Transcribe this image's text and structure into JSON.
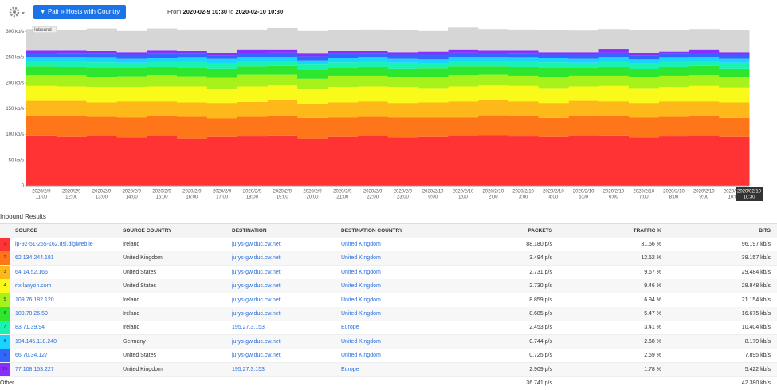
{
  "header": {
    "button": "▼ Pair » Hosts with Country",
    "range_from_label": "From",
    "range_from": "2020-02-9 10:30",
    "range_to_label": "to",
    "range_to": "2020-02-10 10:30"
  },
  "chart_data": {
    "type": "bar",
    "stacked": true,
    "step": true,
    "badge": "Inbound",
    "categories": [
      "11:00",
      "12:00",
      "13:00",
      "14:00",
      "15:00",
      "16:00",
      "17:00",
      "18:00",
      "19:00",
      "20:00",
      "21:00",
      "22:00",
      "23:00",
      "0:00",
      "1:00",
      "2:00",
      "3:00",
      "4:00",
      "5:00",
      "6:00",
      "7:00",
      "8:00",
      "9:00",
      "10:00"
    ],
    "category_dates": [
      "2020/2/9",
      "2020/2/9",
      "2020/2/9",
      "2020/2/9",
      "2020/2/9",
      "2020/2/9",
      "2020/2/9",
      "2020/2/9",
      "2020/2/9",
      "2020/2/9",
      "2020/2/9",
      "2020/2/9",
      "2020/2/9",
      "2020/2/10",
      "2020/2/10",
      "2020/2/10",
      "2020/2/10",
      "2020/2/10",
      "2020/2/10",
      "2020/2/10",
      "2020/2/10",
      "2020/2/10",
      "2020/2/10",
      "2020/2/10"
    ],
    "cursor_date": "2020/02/10",
    "cursor_time": "10:30",
    "ylim": [
      0,
      310
    ],
    "yticks": [
      0,
      {
        "value": 50,
        "label": "50 kb/s"
      },
      {
        "value": 100,
        "label": "100 kb/s"
      },
      {
        "value": 150,
        "label": "150 kb/s"
      },
      {
        "value": 200,
        "label": "200 kb/s"
      },
      {
        "value": 250,
        "label": "250 kb/s"
      },
      {
        "value": 300,
        "label": "300 kb/s"
      }
    ],
    "series": [
      {
        "color": "#ff3333",
        "values": [
          98,
          95,
          97,
          94,
          97,
          92,
          95,
          96,
          98,
          92,
          95,
          97,
          94,
          95,
          97,
          99,
          96,
          95,
          97,
          98,
          94,
          96,
          97,
          95
        ]
      },
      {
        "color": "#ff751a",
        "values": [
          38,
          40,
          37,
          39,
          38,
          42,
          36,
          38,
          37,
          40,
          38,
          37,
          39,
          38,
          36,
          38,
          40,
          37,
          38,
          37,
          39,
          38,
          38,
          37
        ]
      },
      {
        "color": "#ffb81a",
        "values": [
          29,
          30,
          28,
          31,
          29,
          28,
          30,
          29,
          31,
          28,
          29,
          30,
          28,
          29,
          31,
          30,
          28,
          29,
          30,
          29,
          28,
          30,
          29,
          30
        ]
      },
      {
        "color": "#fafa1a",
        "values": [
          29,
          28,
          30,
          28,
          29,
          31,
          28,
          30,
          29,
          28,
          30,
          29,
          31,
          28,
          29,
          28,
          30,
          29,
          28,
          30,
          29,
          28,
          30,
          29
        ]
      },
      {
        "color": "#a6f21a",
        "values": [
          21,
          22,
          20,
          21,
          22,
          20,
          21,
          23,
          21,
          20,
          22,
          21,
          20,
          21,
          22,
          21,
          20,
          22,
          21,
          20,
          21,
          22,
          21,
          20
        ]
      },
      {
        "color": "#2ee62e",
        "values": [
          17,
          16,
          18,
          17,
          16,
          17,
          18,
          16,
          17,
          18,
          16,
          17,
          16,
          18,
          17,
          16,
          17,
          18,
          16,
          17,
          16,
          17,
          18,
          17
        ]
      },
      {
        "color": "#1af2b0",
        "values": [
          10,
          11,
          10,
          9,
          10,
          11,
          10,
          10,
          9,
          11,
          10,
          10,
          11,
          9,
          10,
          10,
          11,
          10,
          9,
          10,
          11,
          10,
          10,
          11
        ]
      },
      {
        "color": "#1ad4ff",
        "values": [
          8,
          8,
          9,
          8,
          7,
          8,
          9,
          8,
          8,
          7,
          8,
          9,
          8,
          8,
          9,
          8,
          7,
          8,
          8,
          9,
          8,
          8,
          7,
          8
        ]
      },
      {
        "color": "#3366ff",
        "values": [
          8,
          7,
          8,
          8,
          9,
          8,
          7,
          8,
          9,
          8,
          8,
          7,
          8,
          9,
          8,
          8,
          8,
          7,
          8,
          9,
          8,
          7,
          8,
          8
        ]
      },
      {
        "color": "#8a2eff",
        "values": [
          5,
          6,
          5,
          5,
          6,
          5,
          5,
          6,
          5,
          5,
          6,
          5,
          5,
          6,
          5,
          5,
          6,
          5,
          5,
          6,
          5,
          5,
          6,
          5
        ]
      },
      {
        "color": "#d6d6d6",
        "values": [
          42,
          40,
          44,
          41,
          43,
          42,
          45,
          40,
          43,
          44,
          41,
          42,
          43,
          40,
          44,
          42,
          41,
          43,
          42,
          40,
          44,
          42,
          41,
          43
        ]
      }
    ]
  },
  "table": {
    "title": "Inbound Results",
    "columns": [
      "SOURCE",
      "SOURCE COUNTRY",
      "DESTINATION",
      "DESTINATION COUNTRY",
      "PACKETS",
      "TRAFFIC %",
      "BITS"
    ],
    "rows": [
      [
        "1",
        "ip-92-51-255-162.dsl.digiweb.ie",
        "Ireland",
        "jurys-gw.duc.cw.net",
        "United Kingdom",
        "88.180 p/s",
        "31.56 %",
        "96.197 kb/s"
      ],
      [
        "2",
        "62.134.244.181",
        "United Kingdom",
        "jurys-gw.duc.cw.net",
        "United Kingdom",
        "3.494 p/s",
        "12.52 %",
        "38.157 kb/s"
      ],
      [
        "3",
        "64.14.52.166",
        "United States",
        "jurys-gw.duc.cw.net",
        "United Kingdom",
        "2.731 p/s",
        "9.67 %",
        "29.484 kb/s"
      ],
      [
        "4",
        "rtx.lanyon.com",
        "United States",
        "jurys-gw.duc.cw.net",
        "United Kingdom",
        "2.730 p/s",
        "9.46 %",
        "28.848 kb/s"
      ],
      [
        "5",
        "109.76.182.120",
        "Ireland",
        "jurys-gw.duc.cw.net",
        "United Kingdom",
        "8.859 p/s",
        "6.94 %",
        "21.154 kb/s"
      ],
      [
        "6",
        "109.78.26.50",
        "Ireland",
        "jurys-gw.duc.cw.net",
        "United Kingdom",
        "8.685 p/s",
        "5.47 %",
        "16.675 kb/s"
      ],
      [
        "7",
        "83.71.39.94",
        "Ireland",
        "195.27.3.153",
        "Europe",
        "2.453 p/s",
        "3.41 %",
        "10.404 kb/s"
      ],
      [
        "8",
        "194.145.118.240",
        "Germany",
        "jurys-gw.duc.cw.net",
        "United Kingdom",
        "0.744 p/s",
        "2.68 %",
        "8.179 kb/s"
      ],
      [
        "9",
        "66.70.34.127",
        "United States",
        "jurys-gw.duc.cw.net",
        "United Kingdom",
        "0.725 p/s",
        "2.59 %",
        "7.895 kb/s"
      ],
      [
        "10",
        "77.108.153.227",
        "United Kingdom",
        "195.27.3.153",
        "Europe",
        "2.909 p/s",
        "1.78 %",
        "5.422 kb/s"
      ]
    ],
    "other": {
      "label": "Other",
      "packets": "36.741 p/s",
      "bits": "42.380 kb/s"
    }
  }
}
